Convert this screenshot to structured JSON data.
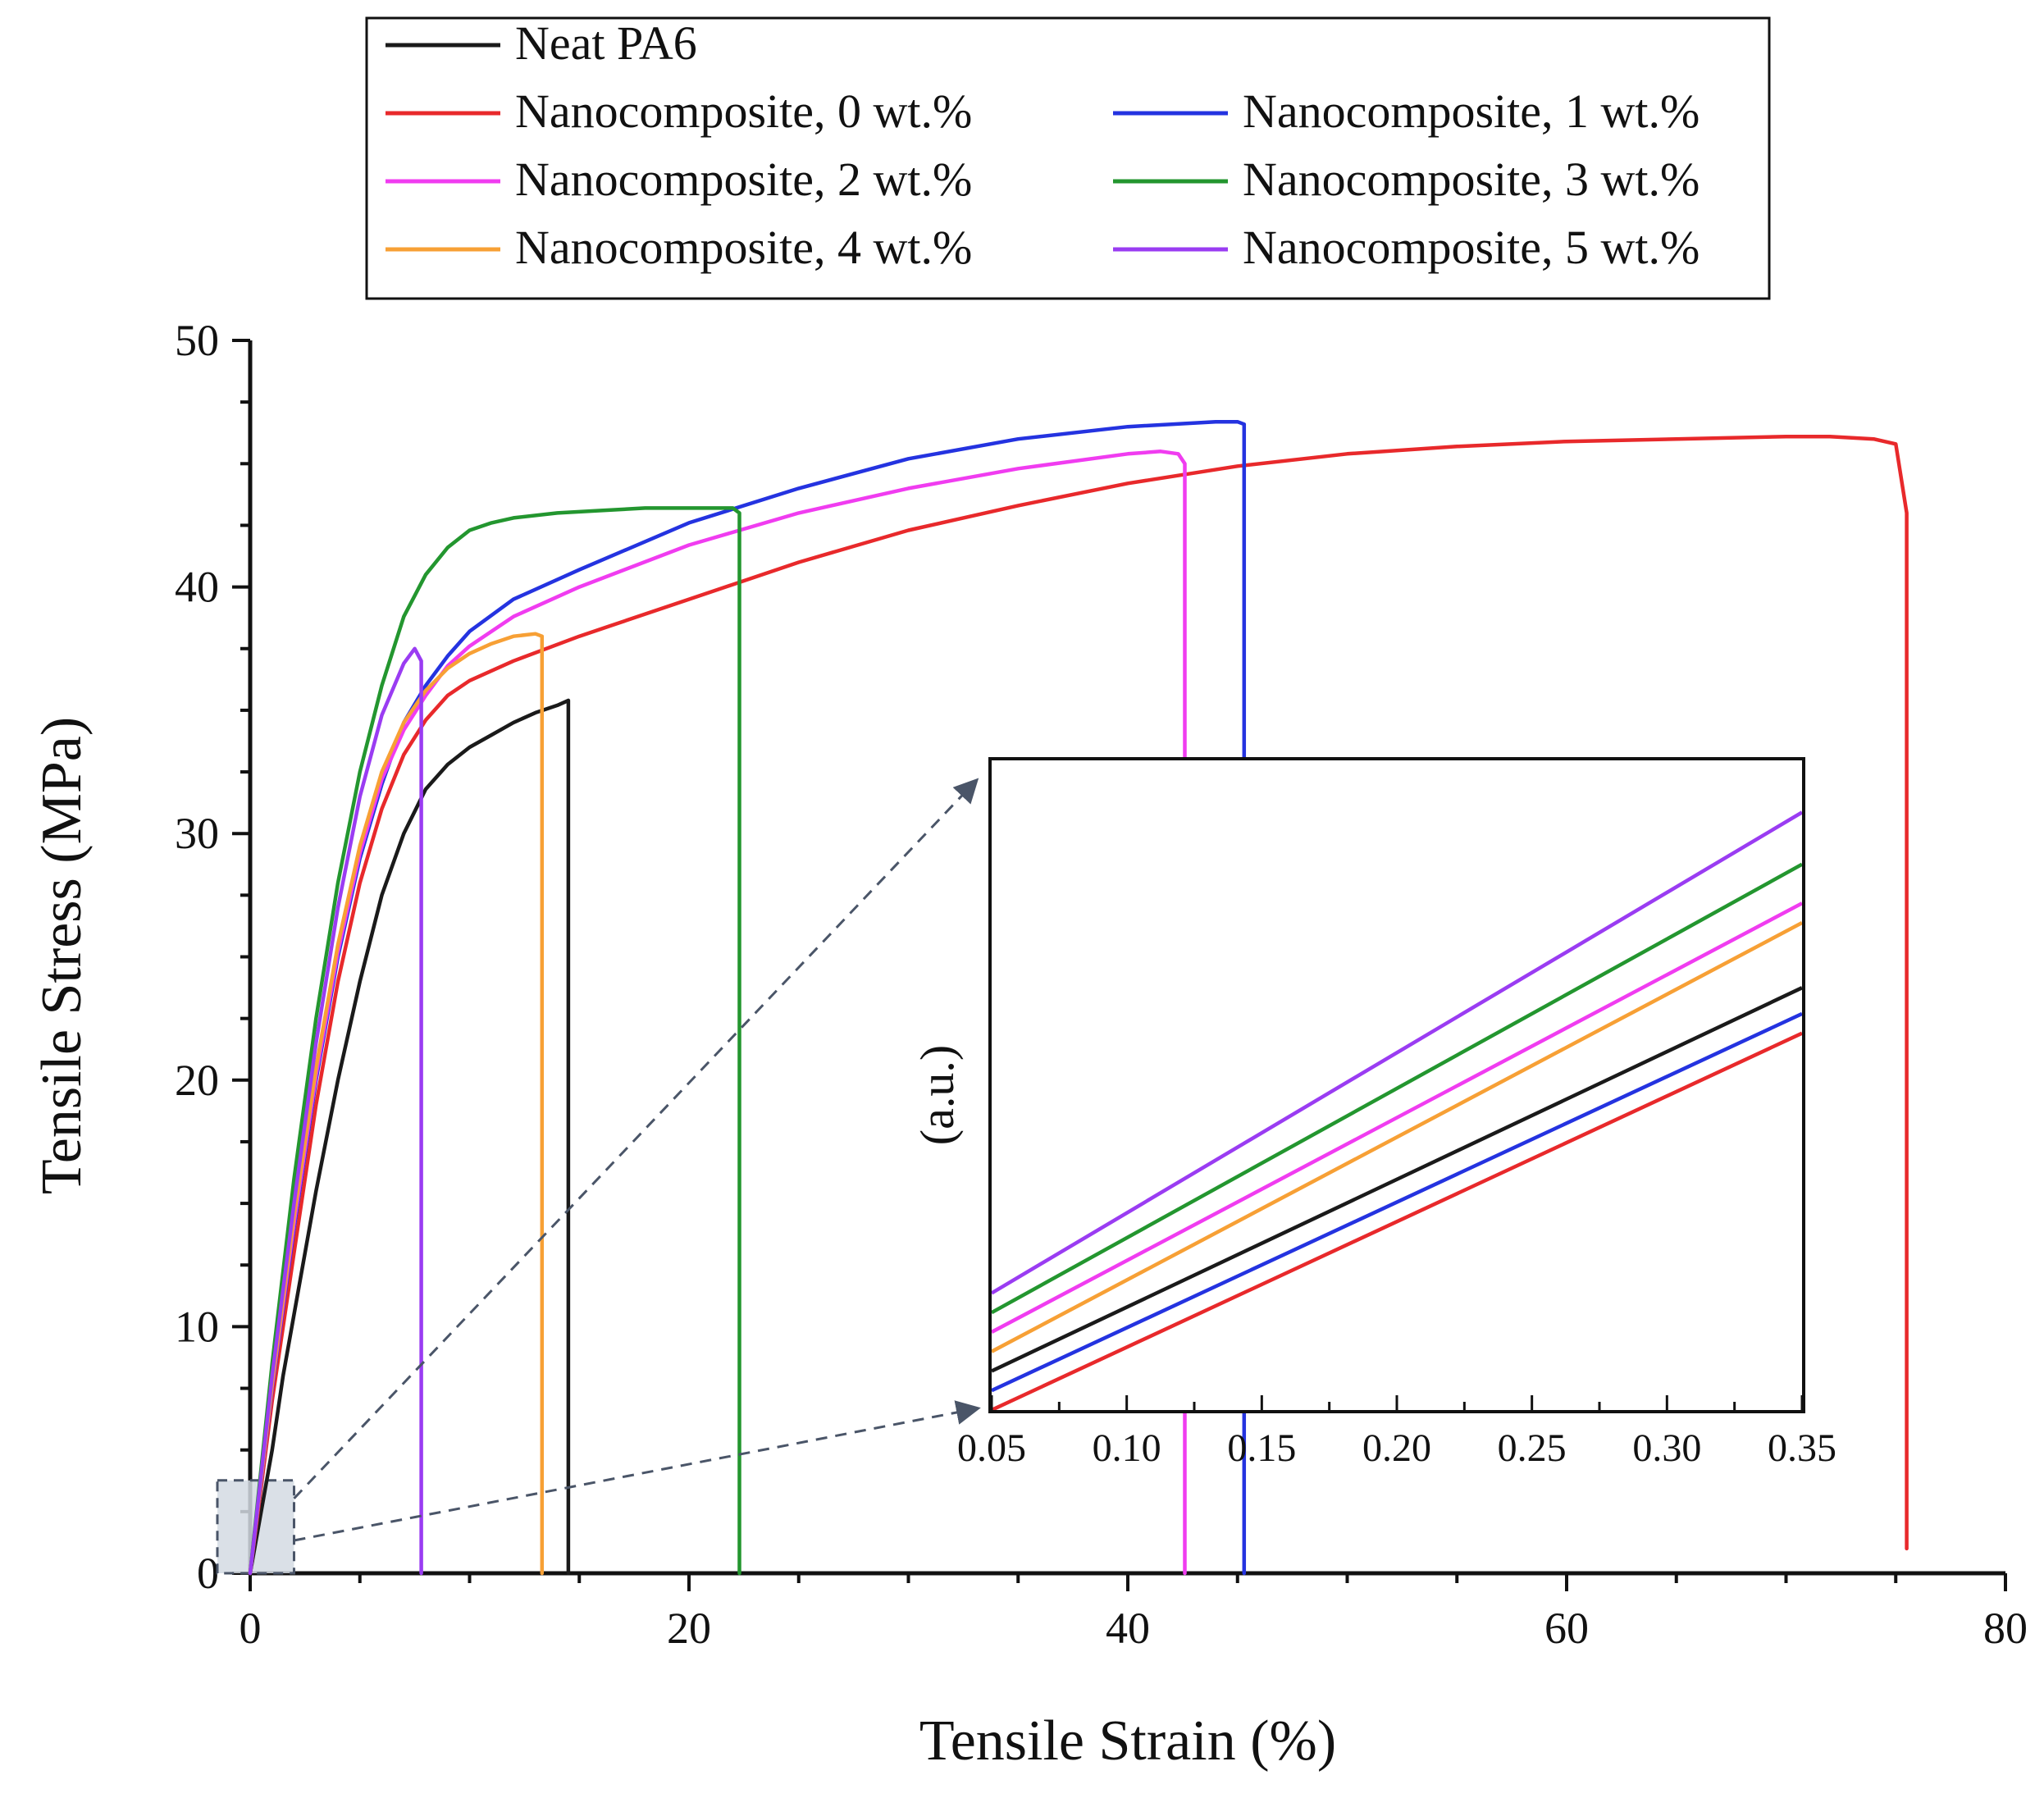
{
  "chart_data": {
    "type": "line",
    "xlabel": "Tensile Strain (%)",
    "ylabel": "Tensile Stress (MPa)",
    "xlim": [
      0,
      80
    ],
    "ylim": [
      0,
      50
    ],
    "x_ticks": [
      "0",
      "20",
      "40",
      "60",
      "80"
    ],
    "y_ticks": [
      "0",
      "10",
      "20",
      "30",
      "40",
      "50"
    ],
    "grid": false,
    "legend_position": "top-center",
    "series": [
      {
        "name": "Neat PA6",
        "color": "#1a1a1a",
        "x": [
          0,
          0.5,
          1.0,
          1.5,
          2.0,
          3.0,
          4.0,
          5.0,
          6.0,
          7.0,
          8.0,
          9.0,
          10.0,
          11.0,
          12.0,
          13.0,
          14.0,
          14.5,
          14.5
        ],
        "y": [
          0,
          2.5,
          5.0,
          8.0,
          10.5,
          15.5,
          20.0,
          24.0,
          27.5,
          30.0,
          31.8,
          32.8,
          33.5,
          34.0,
          34.5,
          34.9,
          35.2,
          35.4,
          0
        ]
      },
      {
        "name": "Nanocomposite, 0 wt.%",
        "color": "#e8292b",
        "x": [
          0,
          1,
          2,
          3,
          4,
          5,
          6,
          7,
          8,
          9,
          10,
          12,
          15,
          20,
          25,
          30,
          35,
          40,
          45,
          50,
          55,
          60,
          65,
          70,
          72,
          74,
          75,
          75.5,
          75.5
        ],
        "y": [
          0,
          7,
          13,
          19,
          24,
          28,
          31,
          33.2,
          34.6,
          35.6,
          36.2,
          37.0,
          38.0,
          39.5,
          41.0,
          42.3,
          43.3,
          44.2,
          44.9,
          45.4,
          45.7,
          45.9,
          46.0,
          46.1,
          46.1,
          46.0,
          45.8,
          43.0,
          1.0
        ]
      },
      {
        "name": "Nanocomposite, 1 wt.%",
        "color": "#2433e0",
        "x": [
          0,
          1,
          2,
          3,
          4,
          5,
          6,
          7,
          8,
          9,
          10,
          12,
          15,
          20,
          25,
          30,
          35,
          40,
          44,
          45,
          45.3,
          45.3
        ],
        "y": [
          0,
          7.5,
          14,
          20,
          25,
          29,
          32,
          34.5,
          36.0,
          37.2,
          38.2,
          39.5,
          40.7,
          42.6,
          44.0,
          45.2,
          46.0,
          46.5,
          46.7,
          46.7,
          46.6,
          0
        ]
      },
      {
        "name": "Nanocomposite, 2 wt.%",
        "color": "#f03cf0",
        "x": [
          0,
          1,
          2,
          3,
          4,
          5,
          6,
          7,
          8,
          9,
          10,
          12,
          15,
          20,
          25,
          30,
          35,
          40,
          41.5,
          42.3,
          42.6,
          42.6
        ],
        "y": [
          0,
          7.6,
          14.2,
          20.2,
          25.2,
          29.2,
          32.2,
          34.2,
          35.6,
          36.8,
          37.6,
          38.8,
          40.0,
          41.7,
          43.0,
          44.0,
          44.8,
          45.4,
          45.5,
          45.4,
          45.0,
          0
        ]
      },
      {
        "name": "Nanocomposite, 3 wt.%",
        "color": "#23962f",
        "x": [
          0,
          1,
          2,
          3,
          4,
          5,
          6,
          7,
          8,
          9,
          10,
          11,
          12,
          14,
          16,
          18,
          20,
          22,
          22.3,
          22.3
        ],
        "y": [
          0,
          8.5,
          16,
          22.5,
          28,
          32.5,
          36,
          38.8,
          40.5,
          41.6,
          42.3,
          42.6,
          42.8,
          43.0,
          43.1,
          43.2,
          43.2,
          43.2,
          43.0,
          0
        ]
      },
      {
        "name": "Nanocomposite, 4 wt.%",
        "color": "#f7a035",
        "x": [
          0,
          1,
          2,
          3,
          4,
          5,
          6,
          7,
          8,
          9,
          10,
          11,
          12,
          13,
          13.3,
          13.3
        ],
        "y": [
          0,
          7.7,
          14.5,
          20.5,
          25.5,
          29.5,
          32.5,
          34.5,
          35.8,
          36.7,
          37.3,
          37.7,
          38.0,
          38.1,
          38.0,
          0
        ]
      },
      {
        "name": "Nanocomposite, 5 wt.%",
        "color": "#9a3cf2",
        "x": [
          0,
          1,
          2,
          3,
          4,
          5,
          6,
          7,
          7.5,
          7.8,
          7.8
        ],
        "y": [
          0,
          8,
          15,
          21.5,
          27,
          31.5,
          34.8,
          36.9,
          37.5,
          37.0,
          0
        ]
      }
    ],
    "inset": {
      "ylabel": "(a.u.)",
      "xlim": [
        0.05,
        0.35
      ],
      "x_ticks": [
        "0.05",
        "0.10",
        "0.15",
        "0.20",
        "0.25",
        "0.30",
        "0.35"
      ],
      "ylim": [
        0,
        100
      ],
      "series": [
        {
          "name": "Nanocomposite, 5 wt.%",
          "color": "#9a3cf2",
          "y0": 18,
          "y1": 92
        },
        {
          "name": "Nanocomposite, 3 wt.%",
          "color": "#23962f",
          "y0": 15,
          "y1": 84
        },
        {
          "name": "Nanocomposite, 2 wt.%",
          "color": "#f03cf0",
          "y0": 12,
          "y1": 78
        },
        {
          "name": "Nanocomposite, 4 wt.%",
          "color": "#f7a035",
          "y0": 9,
          "y1": 75
        },
        {
          "name": "Neat PA6",
          "color": "#1a1a1a",
          "y0": 6,
          "y1": 65
        },
        {
          "name": "Nanocomposite, 1 wt.%",
          "color": "#2433e0",
          "y0": 3,
          "y1": 61
        },
        {
          "name": "Nanocomposite, 0 wt.%",
          "color": "#e8292b",
          "y0": 0,
          "y1": 58
        }
      ]
    },
    "zoom_region": {
      "x": [
        0,
        2
      ],
      "y": [
        0,
        3.5
      ]
    }
  }
}
